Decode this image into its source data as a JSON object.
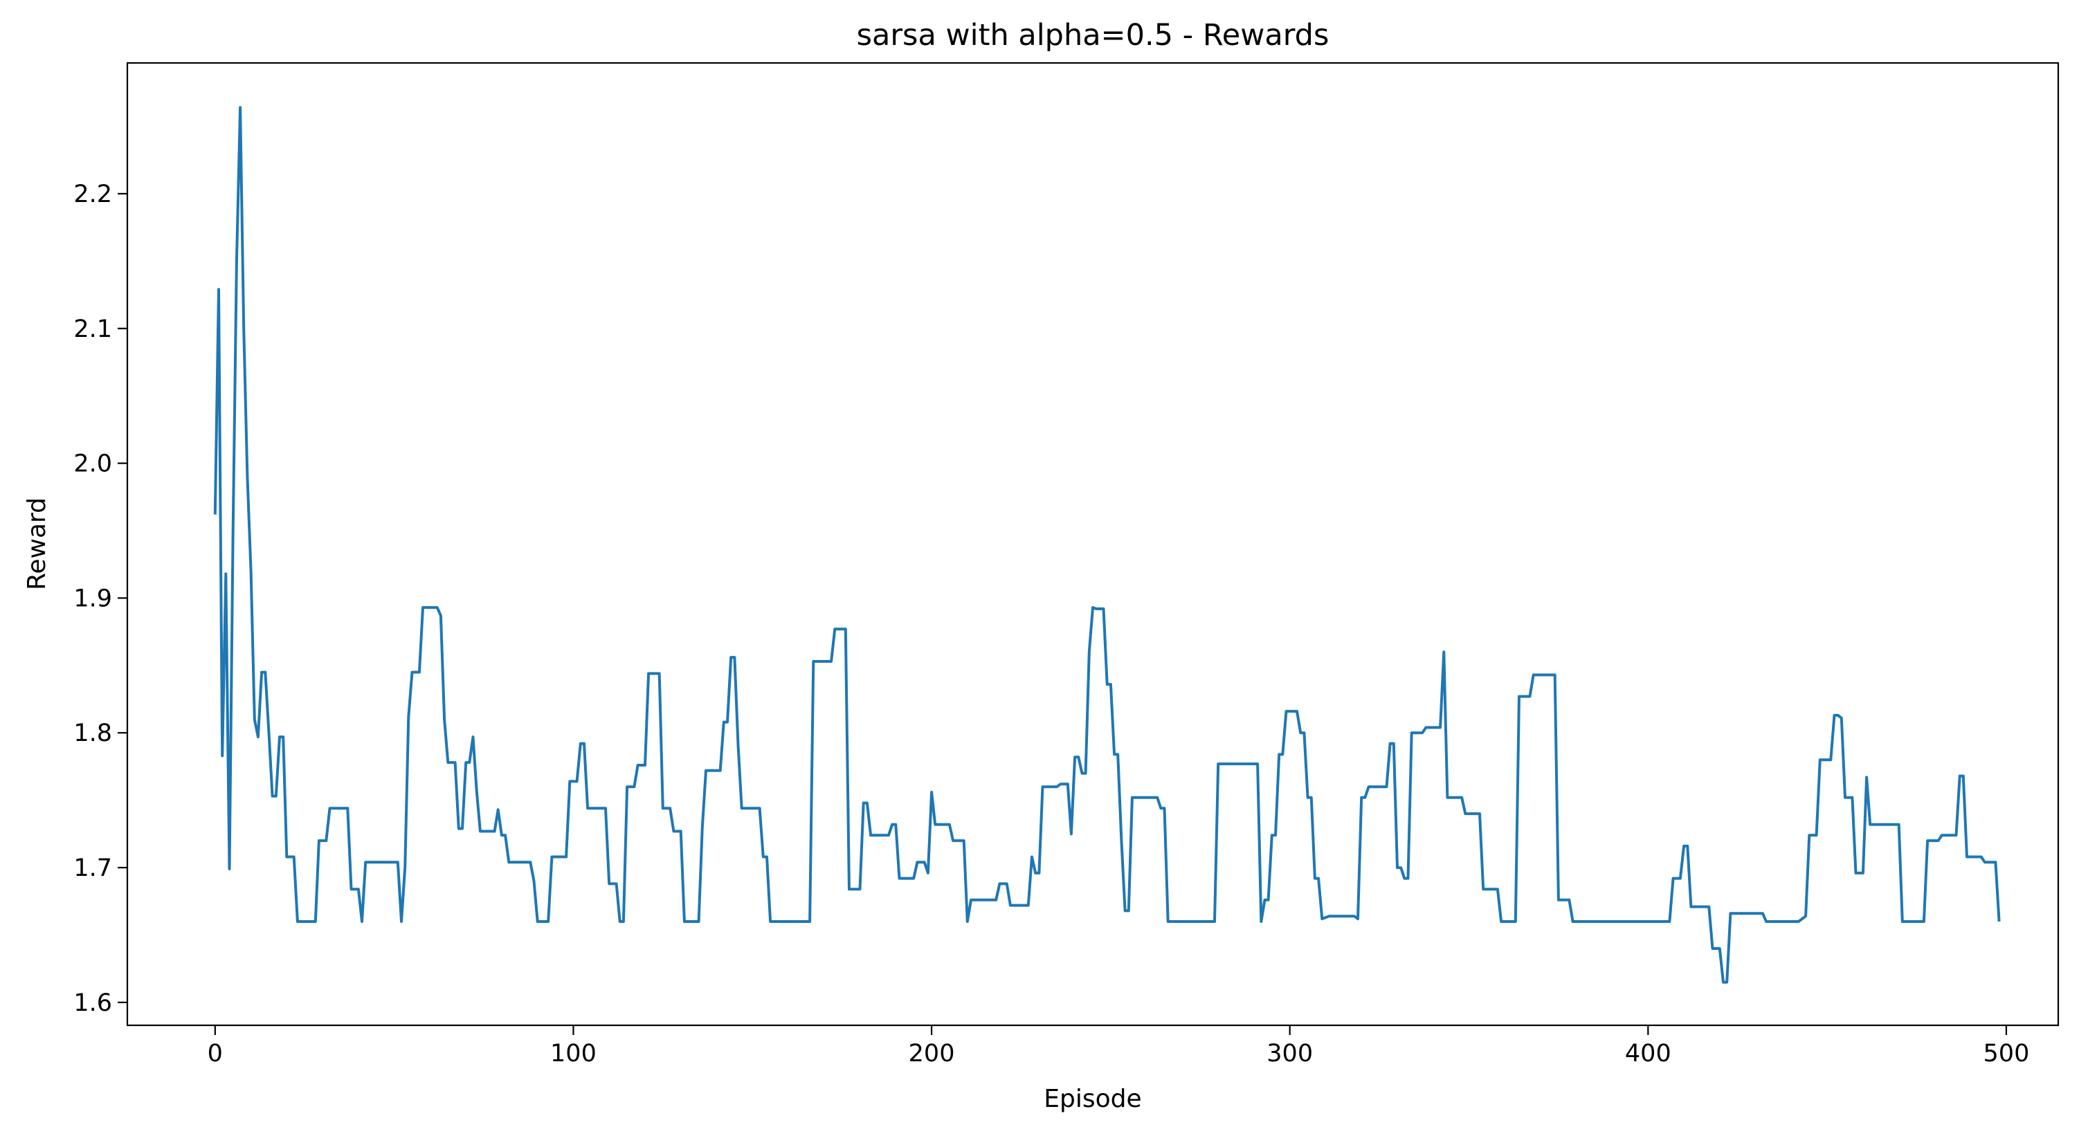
{
  "chart_data": {
    "type": "line",
    "title": "sarsa with alpha=0.5 - Rewards",
    "xlabel": "Episode",
    "ylabel": "Reward",
    "xlim": [
      -24.5,
      514.5
    ],
    "ylim": [
      1.583,
      2.297
    ],
    "xticks": [
      0,
      100,
      200,
      300,
      400,
      500
    ],
    "xtick_labels": [
      "0",
      "100",
      "200",
      "300",
      "400",
      "500"
    ],
    "yticks": [
      1.6,
      1.7,
      1.8,
      1.9,
      2.0,
      2.1,
      2.2
    ],
    "ytick_labels": [
      "1.6",
      "1.7",
      "1.8",
      "1.9",
      "2.0",
      "2.1",
      "2.2"
    ],
    "grid": false,
    "line_color": "#1f77b4",
    "series": [
      {
        "points": [
          [
            0,
            1.962
          ],
          [
            1,
            2.129
          ],
          [
            2,
            1.783
          ],
          [
            3,
            1.918
          ],
          [
            4,
            1.699
          ],
          [
            5,
            1.95
          ],
          [
            6,
            2.15
          ],
          [
            7,
            2.264
          ],
          [
            8,
            2.1
          ],
          [
            9,
            1.99
          ],
          [
            10,
            1.92
          ],
          [
            11,
            1.81
          ],
          [
            12,
            1.797
          ],
          [
            13,
            1.845
          ],
          [
            14,
            1.845
          ],
          [
            15,
            1.8
          ],
          [
            16,
            1.753
          ],
          [
            17,
            1.753
          ],
          [
            18,
            1.797
          ],
          [
            19,
            1.797
          ],
          [
            20,
            1.708
          ],
          [
            22,
            1.708
          ],
          [
            23,
            1.66
          ],
          [
            28,
            1.66
          ],
          [
            29,
            1.72
          ],
          [
            31,
            1.72
          ],
          [
            32,
            1.744
          ],
          [
            37,
            1.744
          ],
          [
            38,
            1.684
          ],
          [
            40,
            1.684
          ],
          [
            41,
            1.66
          ],
          [
            42,
            1.704
          ],
          [
            51,
            1.704
          ],
          [
            52,
            1.66
          ],
          [
            53,
            1.7
          ],
          [
            54,
            1.812
          ],
          [
            55,
            1.845
          ],
          [
            57,
            1.845
          ],
          [
            58,
            1.893
          ],
          [
            62,
            1.893
          ],
          [
            63,
            1.887
          ],
          [
            64,
            1.81
          ],
          [
            65,
            1.778
          ],
          [
            67,
            1.778
          ],
          [
            68,
            1.729
          ],
          [
            69,
            1.729
          ],
          [
            70,
            1.778
          ],
          [
            71,
            1.778
          ],
          [
            72,
            1.797
          ],
          [
            73,
            1.757
          ],
          [
            74,
            1.727
          ],
          [
            78,
            1.727
          ],
          [
            79,
            1.743
          ],
          [
            80,
            1.724
          ],
          [
            81,
            1.724
          ],
          [
            82,
            1.704
          ],
          [
            88,
            1.704
          ],
          [
            89,
            1.69
          ],
          [
            90,
            1.66
          ],
          [
            93,
            1.66
          ],
          [
            94,
            1.708
          ],
          [
            98,
            1.708
          ],
          [
            99,
            1.764
          ],
          [
            101,
            1.764
          ],
          [
            102,
            1.792
          ],
          [
            103,
            1.792
          ],
          [
            104,
            1.744
          ],
          [
            109,
            1.744
          ],
          [
            110,
            1.688
          ],
          [
            112,
            1.688
          ],
          [
            113,
            1.66
          ],
          [
            114,
            1.66
          ],
          [
            115,
            1.76
          ],
          [
            117,
            1.76
          ],
          [
            118,
            1.776
          ],
          [
            120,
            1.776
          ],
          [
            121,
            1.844
          ],
          [
            124,
            1.844
          ],
          [
            125,
            1.744
          ],
          [
            127,
            1.744
          ],
          [
            128,
            1.727
          ],
          [
            130,
            1.727
          ],
          [
            131,
            1.66
          ],
          [
            135,
            1.66
          ],
          [
            136,
            1.73
          ],
          [
            137,
            1.772
          ],
          [
            141,
            1.772
          ],
          [
            142,
            1.808
          ],
          [
            143,
            1.808
          ],
          [
            144,
            1.856
          ],
          [
            145,
            1.856
          ],
          [
            146,
            1.79
          ],
          [
            147,
            1.744
          ],
          [
            152,
            1.744
          ],
          [
            153,
            1.708
          ],
          [
            154,
            1.708
          ],
          [
            155,
            1.66
          ],
          [
            166,
            1.66
          ],
          [
            167,
            1.853
          ],
          [
            172,
            1.853
          ],
          [
            173,
            1.877
          ],
          [
            176,
            1.877
          ],
          [
            177,
            1.684
          ],
          [
            180,
            1.684
          ],
          [
            181,
            1.748
          ],
          [
            182,
            1.748
          ],
          [
            183,
            1.724
          ],
          [
            188,
            1.724
          ],
          [
            189,
            1.732
          ],
          [
            190,
            1.732
          ],
          [
            191,
            1.692
          ],
          [
            195,
            1.692
          ],
          [
            196,
            1.704
          ],
          [
            198,
            1.704
          ],
          [
            199,
            1.696
          ],
          [
            200,
            1.756
          ],
          [
            201,
            1.732
          ],
          [
            205,
            1.732
          ],
          [
            206,
            1.72
          ],
          [
            209,
            1.72
          ],
          [
            210,
            1.66
          ],
          [
            211,
            1.676
          ],
          [
            218,
            1.676
          ],
          [
            219,
            1.688
          ],
          [
            221,
            1.688
          ],
          [
            222,
            1.672
          ],
          [
            227,
            1.672
          ],
          [
            228,
            1.708
          ],
          [
            229,
            1.696
          ],
          [
            230,
            1.696
          ],
          [
            231,
            1.76
          ],
          [
            235,
            1.76
          ],
          [
            236,
            1.762
          ],
          [
            238,
            1.762
          ],
          [
            239,
            1.725
          ],
          [
            240,
            1.782
          ],
          [
            241,
            1.782
          ],
          [
            242,
            1.77
          ],
          [
            243,
            1.77
          ],
          [
            244,
            1.86
          ],
          [
            245,
            1.893
          ],
          [
            246,
            1.892
          ],
          [
            248,
            1.892
          ],
          [
            249,
            1.836
          ],
          [
            250,
            1.836
          ],
          [
            251,
            1.784
          ],
          [
            252,
            1.784
          ],
          [
            253,
            1.72
          ],
          [
            254,
            1.668
          ],
          [
            255,
            1.668
          ],
          [
            256,
            1.752
          ],
          [
            263,
            1.752
          ],
          [
            264,
            1.744
          ],
          [
            265,
            1.744
          ],
          [
            266,
            1.66
          ],
          [
            279,
            1.66
          ],
          [
            280,
            1.777
          ],
          [
            291,
            1.777
          ],
          [
            292,
            1.66
          ],
          [
            293,
            1.676
          ],
          [
            294,
            1.676
          ],
          [
            295,
            1.724
          ],
          [
            296,
            1.724
          ],
          [
            297,
            1.784
          ],
          [
            298,
            1.784
          ],
          [
            299,
            1.816
          ],
          [
            302,
            1.816
          ],
          [
            303,
            1.8
          ],
          [
            304,
            1.8
          ],
          [
            305,
            1.752
          ],
          [
            306,
            1.752
          ],
          [
            307,
            1.692
          ],
          [
            308,
            1.692
          ],
          [
            309,
            1.662
          ],
          [
            311,
            1.664
          ],
          [
            318,
            1.664
          ],
          [
            319,
            1.662
          ],
          [
            320,
            1.752
          ],
          [
            321,
            1.752
          ],
          [
            322,
            1.76
          ],
          [
            327,
            1.76
          ],
          [
            328,
            1.792
          ],
          [
            329,
            1.792
          ],
          [
            330,
            1.7
          ],
          [
            331,
            1.7
          ],
          [
            332,
            1.692
          ],
          [
            333,
            1.692
          ],
          [
            334,
            1.8
          ],
          [
            337,
            1.8
          ],
          [
            338,
            1.804
          ],
          [
            342,
            1.804
          ],
          [
            343,
            1.86
          ],
          [
            344,
            1.752
          ],
          [
            348,
            1.752
          ],
          [
            349,
            1.74
          ],
          [
            353,
            1.74
          ],
          [
            354,
            1.684
          ],
          [
            358,
            1.684
          ],
          [
            359,
            1.66
          ],
          [
            363,
            1.66
          ],
          [
            364,
            1.827
          ],
          [
            367,
            1.827
          ],
          [
            368,
            1.843
          ],
          [
            374,
            1.843
          ],
          [
            375,
            1.676
          ],
          [
            378,
            1.676
          ],
          [
            379,
            1.66
          ],
          [
            406,
            1.66
          ],
          [
            407,
            1.692
          ],
          [
            409,
            1.692
          ],
          [
            410,
            1.716
          ],
          [
            411,
            1.716
          ],
          [
            412,
            1.671
          ],
          [
            417,
            1.671
          ],
          [
            418,
            1.64
          ],
          [
            420,
            1.64
          ],
          [
            421,
            1.615
          ],
          [
            422,
            1.615
          ],
          [
            423,
            1.666
          ],
          [
            432,
            1.666
          ],
          [
            433,
            1.66
          ],
          [
            442,
            1.66
          ],
          [
            443,
            1.662
          ],
          [
            444,
            1.664
          ],
          [
            445,
            1.724
          ],
          [
            447,
            1.724
          ],
          [
            448,
            1.78
          ],
          [
            451,
            1.78
          ],
          [
            452,
            1.813
          ],
          [
            453,
            1.813
          ],
          [
            454,
            1.811
          ],
          [
            455,
            1.752
          ],
          [
            457,
            1.752
          ],
          [
            458,
            1.696
          ],
          [
            460,
            1.696
          ],
          [
            461,
            1.767
          ],
          [
            462,
            1.732
          ],
          [
            470,
            1.732
          ],
          [
            471,
            1.66
          ],
          [
            477,
            1.66
          ],
          [
            478,
            1.72
          ],
          [
            481,
            1.72
          ],
          [
            482,
            1.724
          ],
          [
            486,
            1.724
          ],
          [
            487,
            1.768
          ],
          [
            488,
            1.768
          ],
          [
            489,
            1.708
          ],
          [
            493,
            1.708
          ],
          [
            494,
            1.704
          ],
          [
            497,
            1.704
          ],
          [
            498,
            1.66
          ]
        ]
      }
    ]
  }
}
